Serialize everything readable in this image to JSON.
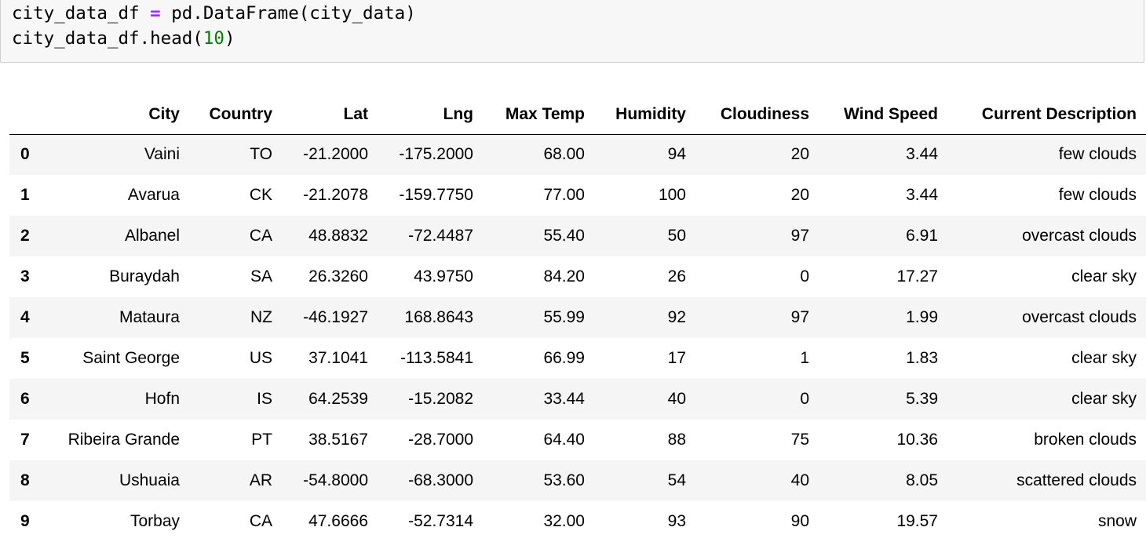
{
  "code_cell": {
    "line1": {
      "var": "city_data_df ",
      "op": "=",
      "rest": " pd.DataFrame(city_data)"
    },
    "line2": {
      "pre": "city_data_df.head(",
      "num": "10",
      "post": ")"
    }
  },
  "table": {
    "columns": [
      "",
      "City",
      "Country",
      "Lat",
      "Lng",
      "Max Temp",
      "Humidity",
      "Cloudiness",
      "Wind Speed",
      "Current Description"
    ],
    "rows": [
      {
        "index": "0",
        "city": "Vaini",
        "country": "TO",
        "lat": "-21.2000",
        "lng": "-175.2000",
        "max_temp": "68.00",
        "humidity": "94",
        "cloudiness": "20",
        "wind_speed": "3.44",
        "description": "few clouds"
      },
      {
        "index": "1",
        "city": "Avarua",
        "country": "CK",
        "lat": "-21.2078",
        "lng": "-159.7750",
        "max_temp": "77.00",
        "humidity": "100",
        "cloudiness": "20",
        "wind_speed": "3.44",
        "description": "few clouds"
      },
      {
        "index": "2",
        "city": "Albanel",
        "country": "CA",
        "lat": "48.8832",
        "lng": "-72.4487",
        "max_temp": "55.40",
        "humidity": "50",
        "cloudiness": "97",
        "wind_speed": "6.91",
        "description": "overcast clouds"
      },
      {
        "index": "3",
        "city": "Buraydah",
        "country": "SA",
        "lat": "26.3260",
        "lng": "43.9750",
        "max_temp": "84.20",
        "humidity": "26",
        "cloudiness": "0",
        "wind_speed": "17.27",
        "description": "clear sky"
      },
      {
        "index": "4",
        "city": "Mataura",
        "country": "NZ",
        "lat": "-46.1927",
        "lng": "168.8643",
        "max_temp": "55.99",
        "humidity": "92",
        "cloudiness": "97",
        "wind_speed": "1.99",
        "description": "overcast clouds"
      },
      {
        "index": "5",
        "city": "Saint George",
        "country": "US",
        "lat": "37.1041",
        "lng": "-113.5841",
        "max_temp": "66.99",
        "humidity": "17",
        "cloudiness": "1",
        "wind_speed": "1.83",
        "description": "clear sky"
      },
      {
        "index": "6",
        "city": "Hofn",
        "country": "IS",
        "lat": "64.2539",
        "lng": "-15.2082",
        "max_temp": "33.44",
        "humidity": "40",
        "cloudiness": "0",
        "wind_speed": "5.39",
        "description": "clear sky"
      },
      {
        "index": "7",
        "city": "Ribeira Grande",
        "country": "PT",
        "lat": "38.5167",
        "lng": "-28.7000",
        "max_temp": "64.40",
        "humidity": "88",
        "cloudiness": "75",
        "wind_speed": "10.36",
        "description": "broken clouds"
      },
      {
        "index": "8",
        "city": "Ushuaia",
        "country": "AR",
        "lat": "-54.8000",
        "lng": "-68.3000",
        "max_temp": "53.60",
        "humidity": "54",
        "cloudiness": "40",
        "wind_speed": "8.05",
        "description": "scattered clouds"
      },
      {
        "index": "9",
        "city": "Torbay",
        "country": "CA",
        "lat": "47.6666",
        "lng": "-52.7314",
        "max_temp": "32.00",
        "humidity": "93",
        "cloudiness": "90",
        "wind_speed": "19.57",
        "description": "snow"
      }
    ]
  }
}
